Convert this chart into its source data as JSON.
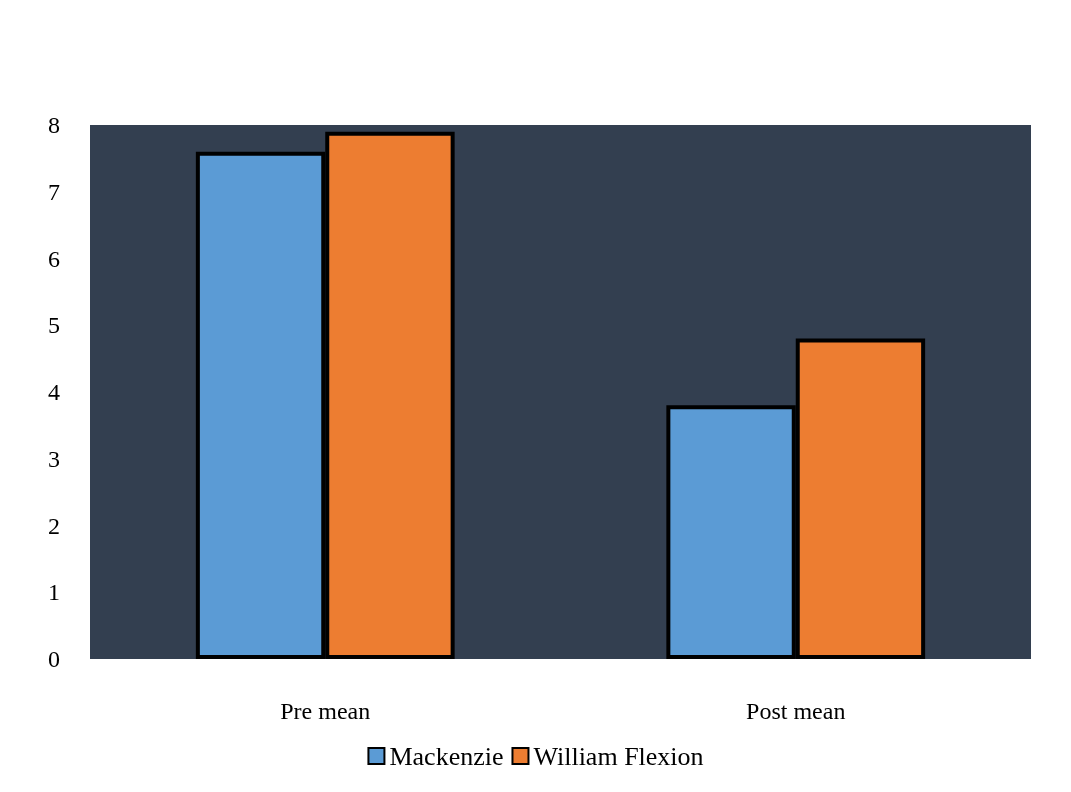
{
  "chart_data": {
    "type": "bar",
    "categories": [
      "Pre mean",
      "Post mean"
    ],
    "series": [
      {
        "name": "Mackenzie",
        "color": "#5b9bd5",
        "values": [
          7.6,
          3.8
        ]
      },
      {
        "name": "William Flexion",
        "color": "#ed7d31",
        "values": [
          7.9,
          4.8
        ]
      }
    ],
    "ylim": [
      0,
      8
    ],
    "yticks": [
      0,
      1,
      2,
      3,
      4,
      5,
      6,
      7,
      8
    ],
    "grid": false,
    "legend": "bottom"
  }
}
